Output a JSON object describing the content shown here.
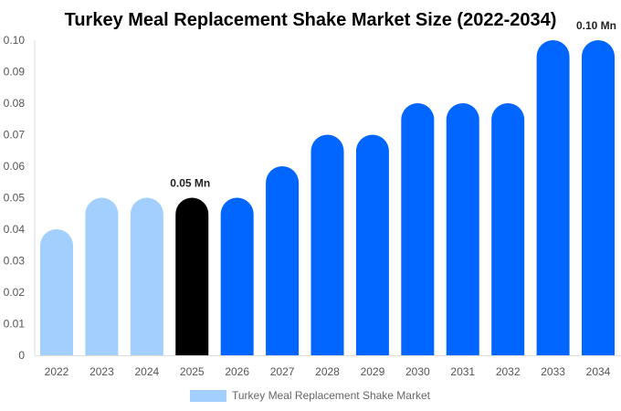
{
  "chart_data": {
    "type": "bar",
    "title": "Turkey Meal Replacement Shake Market Size (2022-2034)",
    "categories": [
      "2022",
      "2023",
      "2024",
      "2025",
      "2026",
      "2027",
      "2028",
      "2029",
      "2030",
      "2031",
      "2032",
      "2033",
      "2034"
    ],
    "series": [
      {
        "name": "Turkey Meal Replacement Shake Market",
        "values": [
          0.04,
          0.05,
          0.05,
          0.05,
          0.05,
          0.06,
          0.07,
          0.07,
          0.08,
          0.08,
          0.08,
          0.1,
          0.1
        ]
      }
    ],
    "bar_colors": [
      "#a3cfff",
      "#a3cfff",
      "#a3cfff",
      "#000000",
      "#0066ff",
      "#0066ff",
      "#0066ff",
      "#0066ff",
      "#0066ff",
      "#0066ff",
      "#0066ff",
      "#0066ff",
      "#0066ff"
    ],
    "data_labels": [
      {
        "index": 3,
        "text": "0.05 Mn"
      },
      {
        "index": 12,
        "text": "0.10 Mn"
      }
    ],
    "yticks": [
      "0",
      "0.01",
      "0.02",
      "0.03",
      "0.04",
      "0.05",
      "0.06",
      "0.07",
      "0.08",
      "0.09",
      "0.10"
    ],
    "ylim": [
      0,
      0.1
    ],
    "xlabel": "",
    "ylabel": "",
    "grid": false,
    "legend": {
      "position": "bottom",
      "color": "#a3cfff"
    }
  }
}
